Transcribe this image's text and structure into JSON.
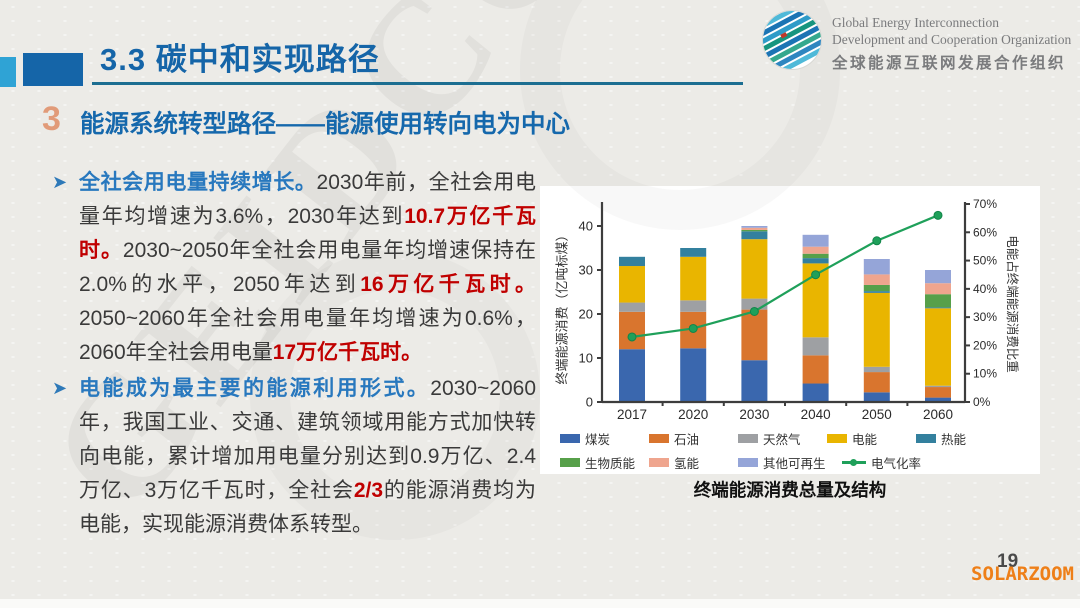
{
  "header": {
    "title": "3.3 碳中和实现路径",
    "section_number": "3",
    "section_title": "能源系统转型路径——能源使用转向电为中心",
    "logo": {
      "line1": "Global Energy Interconnection",
      "line2": "Development and Cooperation Organization",
      "line3": "全球能源互联网发展合作组织"
    }
  },
  "main": {
    "bullets": [
      {
        "segments": [
          "全社会用电量持续增长。",
          "2030年前，全社会用电量年均增速为3.6%，2030年达到",
          "10.7万亿千瓦时。",
          "2030~2050年全社会用电量年均增速保持在2.0%的水平，2050年达到",
          "16万亿千瓦时。",
          "2050~2060年全社会用电量年均增速为0.6%，2060年全社会用电量",
          "17万亿千瓦时。"
        ]
      },
      {
        "segments": [
          "电能成为最主要的能源利用形式。",
          "2030~2060年，我国工业、交通、建筑领域用能方式加快转向电能，累计增加用电量分别达到0.9万亿、2.4万亿、3万亿千瓦时，全社会",
          "2/3",
          "的能源消费均为电能，实现能源消费体系转型。"
        ]
      }
    ]
  },
  "chart_data": {
    "type": "bar",
    "subtype": "stacked-bar-with-line",
    "title": "终端能源消费总量及结构",
    "categories": [
      "2017",
      "2020",
      "2030",
      "2040",
      "2050",
      "2060"
    ],
    "bar_series": [
      {
        "name": "煤炭",
        "color": "#3A67AE",
        "values": [
          12.0,
          12.2,
          9.5,
          4.2,
          2.2,
          1.0
        ]
      },
      {
        "name": "石油",
        "color": "#D9752E",
        "values": [
          8.5,
          8.3,
          11.5,
          6.4,
          4.6,
          2.4
        ]
      },
      {
        "name": "天然气",
        "color": "#9EA0A3",
        "values": [
          2.1,
          2.6,
          2.5,
          4.1,
          1.2,
          0.3
        ]
      },
      {
        "name": "电能",
        "color": "#E9B500",
        "values": [
          8.3,
          9.9,
          13.5,
          16.8,
          16.8,
          17.6
        ]
      },
      {
        "name": "热能",
        "color": "#33809E",
        "values": [
          2.1,
          2.0,
          1.8,
          1.2,
          0.4,
          0.2
        ]
      },
      {
        "name": "生物质能",
        "color": "#57A04A",
        "values": [
          0,
          0,
          0.3,
          1.0,
          1.4,
          3.0
        ]
      },
      {
        "name": "氢能",
        "color": "#EFA58E",
        "values": [
          0,
          0,
          0.5,
          1.6,
          2.4,
          2.5
        ]
      },
      {
        "name": "其他可再生",
        "color": "#95A5D8",
        "values": [
          0,
          0,
          0.4,
          2.7,
          3.5,
          3.0
        ]
      }
    ],
    "line_series": {
      "name": "电气化率",
      "color": "#1FA05A",
      "values": [
        23,
        26,
        32,
        45,
        57,
        66
      ]
    },
    "left_axis": {
      "label": "终端能源消费（亿吨标煤）",
      "min": 0,
      "max": 40,
      "step": 10
    },
    "right_axis": {
      "label": "电能占终端能源消费比重",
      "min": 0,
      "max": 70,
      "step": 10,
      "unit": "%"
    },
    "legend_position": "bottom",
    "grid": false
  },
  "footer": {
    "page_number": "19",
    "watermark": "SOLARZOOM"
  },
  "background_watermark": "GEIDCO"
}
